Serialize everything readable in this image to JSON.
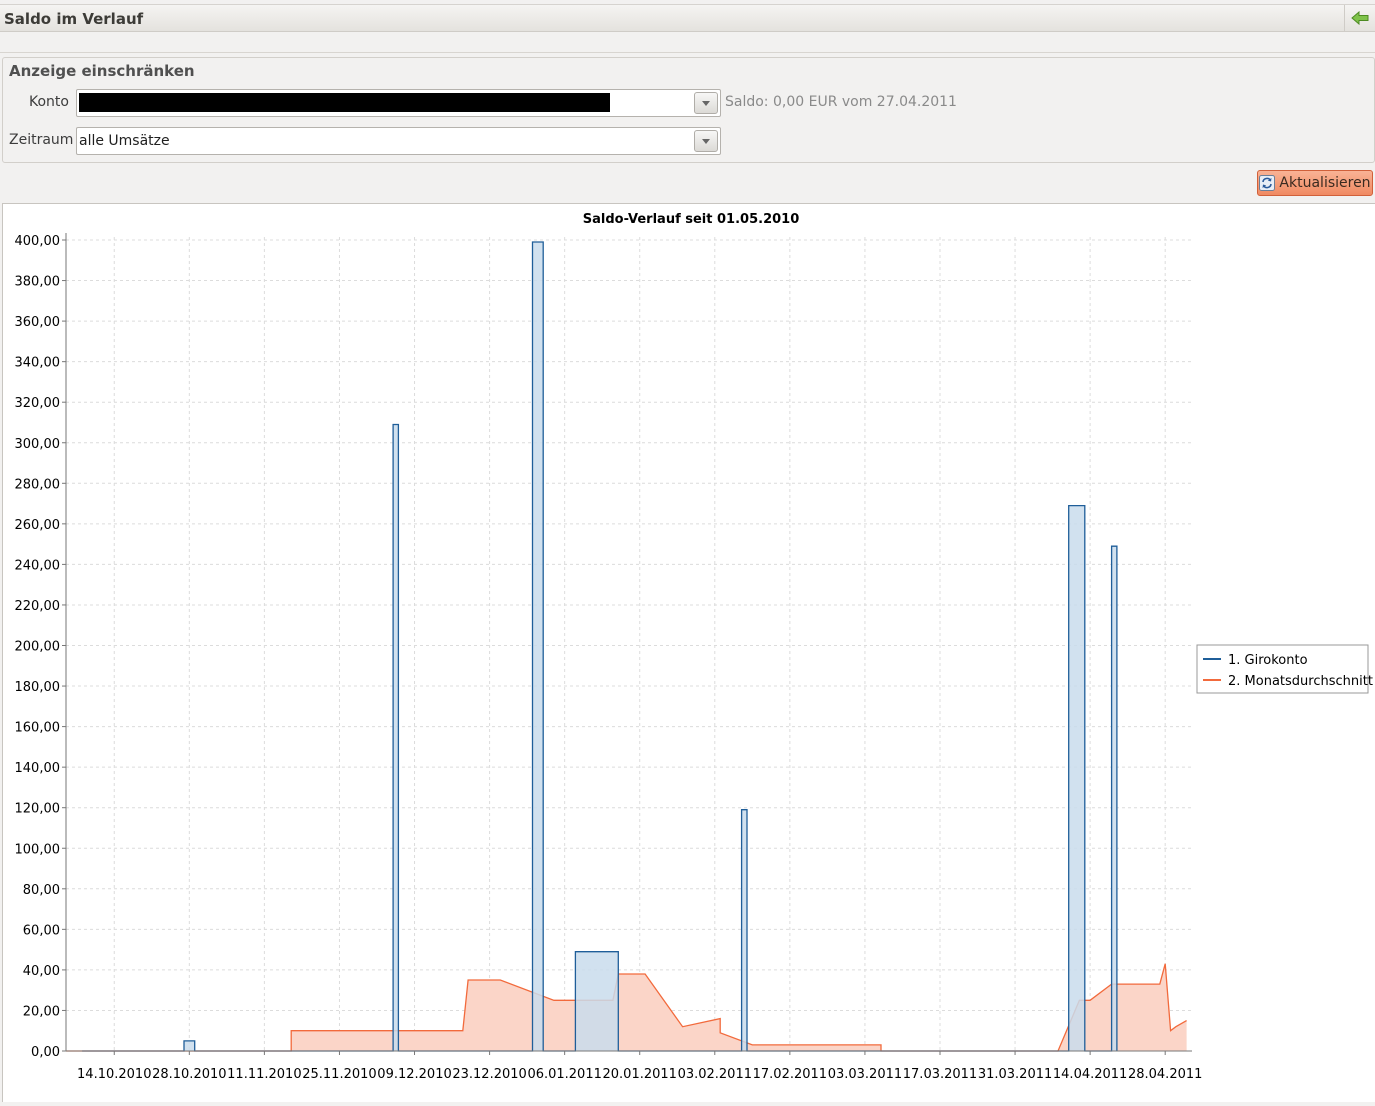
{
  "window": {
    "title": "Saldo im Verlauf",
    "back_icon": "green-arrow-left-icon"
  },
  "filter": {
    "legend": "Anzeige einschränken",
    "konto_label": "Konto",
    "konto_value": "",
    "saldo_info": "Saldo: 0,00 EUR vom 27.04.2011",
    "zeitraum_label": "Zeitraum",
    "zeitraum_value": "alle Umsätze"
  },
  "toolbar": {
    "refresh_label": "Aktualisieren",
    "refresh_icon": "refresh-icon"
  },
  "chart_data": {
    "type": "area",
    "title": "Saldo-Verlauf seit 01.05.2010",
    "xlabel": "",
    "ylabel": "",
    "x_range": [
      "2010-10-05",
      "2011-05-03"
    ],
    "ylim": [
      0,
      400
    ],
    "y_ticks": [
      0,
      20,
      40,
      60,
      80,
      100,
      120,
      140,
      160,
      180,
      200,
      220,
      240,
      260,
      280,
      300,
      320,
      340,
      360,
      380,
      400
    ],
    "y_tick_labels": [
      "0,00",
      "20,00",
      "40,00",
      "60,00",
      "80,00",
      "100,00",
      "120,00",
      "140,00",
      "160,00",
      "180,00",
      "200,00",
      "220,00",
      "240,00",
      "260,00",
      "280,00",
      "300,00",
      "320,00",
      "340,00",
      "360,00",
      "380,00",
      "400,00"
    ],
    "x_ticks": [
      "2010-10-14",
      "2010-10-28",
      "2010-11-11",
      "2010-11-25",
      "2010-12-09",
      "2010-12-23",
      "2011-01-06",
      "2011-01-20",
      "2011-02-03",
      "2011-02-17",
      "2011-03-03",
      "2011-03-17",
      "2011-03-31",
      "2011-04-14",
      "2011-04-28"
    ],
    "x_tick_labels": [
      "14.10.2010",
      "28.10.2010",
      "11.11.2010",
      "25.11.2010",
      "09.12.2010",
      "23.12.2010",
      "06.01.2011",
      "20.01.2011",
      "03.02.2011",
      "17.02.2011",
      "03.03.2011",
      "17.03.2011",
      "31.03.2011",
      "14.04.2011",
      "28.04.2011"
    ],
    "grid": true,
    "legend_position": "right",
    "series": [
      {
        "name": "1. Girokonto",
        "color": "#1f5e99",
        "fill": "#c9dcec",
        "x": [
          "2010-10-08",
          "2010-10-27",
          "2010-10-27",
          "2010-10-29",
          "2010-10-29",
          "2010-11-11",
          "2010-12-05",
          "2010-12-05",
          "2010-12-06",
          "2010-12-06",
          "2010-12-31",
          "2010-12-31",
          "2011-01-02",
          "2011-01-02",
          "2011-01-08",
          "2011-01-08",
          "2011-01-16",
          "2011-01-16",
          "2011-02-08",
          "2011-02-08",
          "2011-02-09",
          "2011-02-09",
          "2011-04-10",
          "2011-04-10",
          "2011-04-13",
          "2011-04-13",
          "2011-04-18",
          "2011-04-18",
          "2011-04-19",
          "2011-04-19"
        ],
        "y": [
          0,
          0,
          5,
          5,
          0,
          0,
          0,
          309,
          309,
          0,
          0,
          399,
          399,
          0,
          0,
          49,
          49,
          0,
          0,
          119,
          119,
          0,
          0,
          269,
          269,
          0,
          0,
          249,
          249,
          0
        ]
      },
      {
        "name": "2. Monatsdurchschnitt",
        "color": "#f26a3c",
        "fill": "#fbd5c8",
        "x": [
          "2010-10-05",
          "2010-10-09",
          "2010-10-09",
          "2010-11-11",
          "2010-11-16",
          "2010-11-16",
          "2010-12-08",
          "2010-12-08",
          "2010-12-12",
          "2010-12-12",
          "2010-12-15",
          "2010-12-18",
          "2010-12-18",
          "2010-12-19",
          "2010-12-25",
          "2011-01-04",
          "2011-01-15",
          "2011-01-16",
          "2011-01-21",
          "2011-01-28",
          "2011-01-28",
          "2011-02-04",
          "2011-02-04",
          "2011-02-10",
          "2011-02-10",
          "2011-03-02",
          "2011-03-06",
          "2011-03-06",
          "2011-03-28",
          "2011-03-31",
          "2011-04-08",
          "2011-04-12",
          "2011-04-14",
          "2011-04-18",
          "2011-04-27",
          "2011-04-28",
          "2011-04-29",
          "2011-04-30",
          "2011-05-02"
        ],
        "y": [
          0,
          0,
          0,
          0,
          0,
          10,
          10,
          10,
          10,
          10,
          10,
          10,
          10,
          35,
          35,
          25,
          25,
          38,
          38,
          12,
          12,
          16,
          9,
          3,
          3,
          3,
          3,
          0,
          0,
          0,
          0,
          25,
          25,
          33,
          33,
          43,
          10,
          12,
          15
        ]
      }
    ]
  }
}
